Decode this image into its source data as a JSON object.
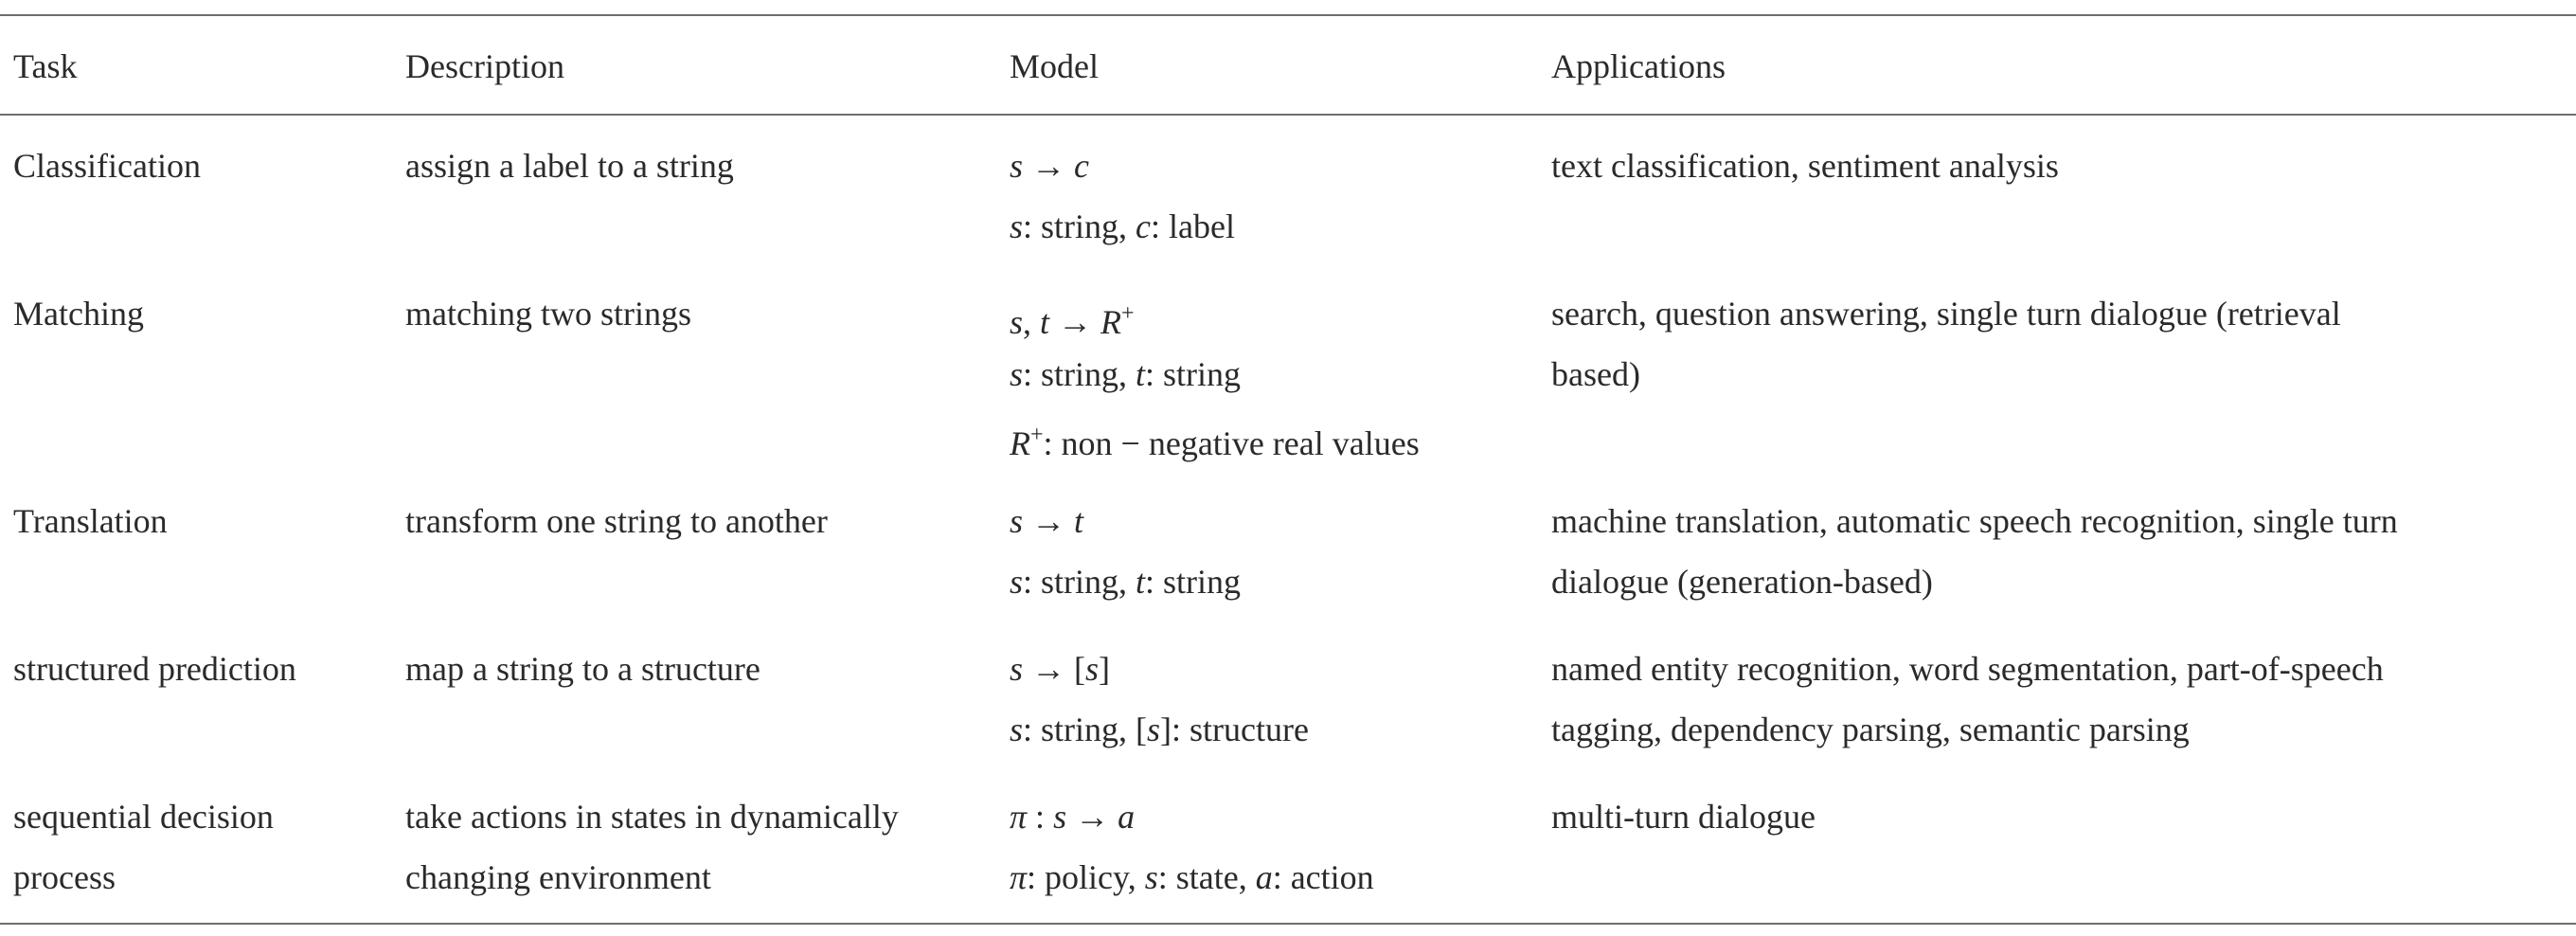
{
  "headers": {
    "task": "Task",
    "description": "Description",
    "model": "Model",
    "applications": "Applications"
  },
  "rows": [
    {
      "task": [
        "Classification"
      ],
      "description": [
        "assign a label to a string"
      ],
      "model": [
        "s → c",
        "s: string, c: label"
      ],
      "applications": [
        "text classification, sentiment analysis"
      ]
    },
    {
      "task": [
        "Matching"
      ],
      "description": [
        "matching two strings"
      ],
      "model": [
        "s, t → R+",
        "s: string, t: string",
        "R+: non − negative real values"
      ],
      "applications": [
        "search, question answering, single turn dialogue (retrieval",
        "based)"
      ]
    },
    {
      "task": [
        "Translation"
      ],
      "description": [
        "transform one string to another"
      ],
      "model": [
        "s → t",
        "s: string, t: string"
      ],
      "applications": [
        "machine translation, automatic speech recognition, single turn",
        "dialogue (generation-based)"
      ]
    },
    {
      "task": [
        "structured prediction"
      ],
      "description": [
        "map a string to a structure"
      ],
      "model": [
        "s → [s]",
        "s: string, [s]: structure"
      ],
      "applications": [
        "named entity recognition, word segmentation, part-of-speech",
        "tagging, dependency parsing, semantic parsing"
      ]
    },
    {
      "task": [
        "sequential decision",
        "process"
      ],
      "description": [
        "take actions in states in dynamically",
        "changing environment"
      ],
      "model": [
        "π : s → a",
        "π: policy, s: state, a: action"
      ],
      "applications": [
        "multi-turn dialogue"
      ]
    }
  ]
}
